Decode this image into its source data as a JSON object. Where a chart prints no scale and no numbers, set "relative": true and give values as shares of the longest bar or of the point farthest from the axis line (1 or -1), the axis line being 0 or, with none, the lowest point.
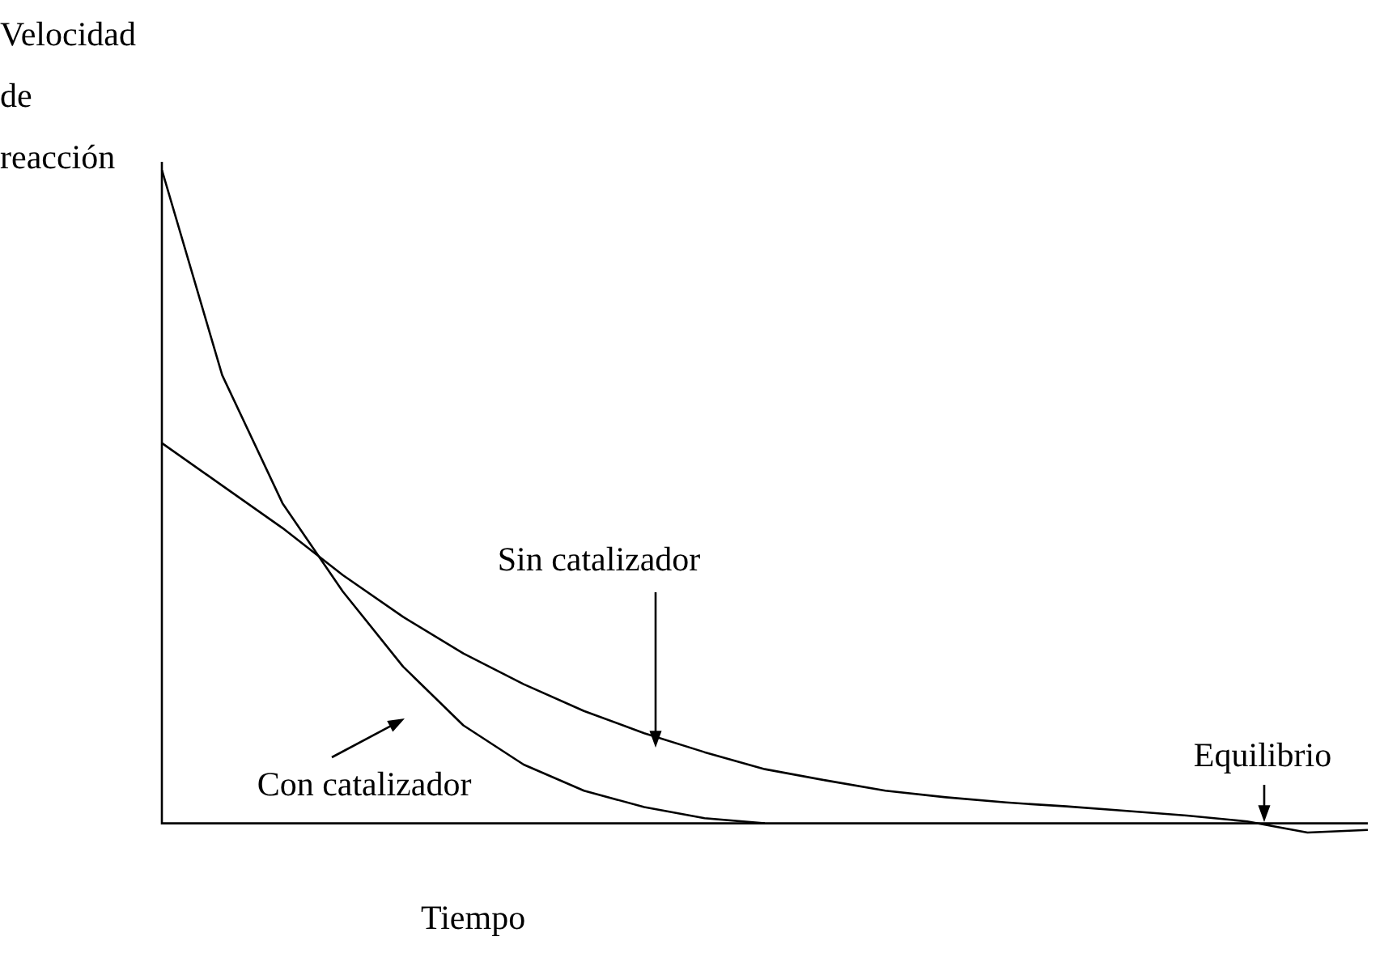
{
  "chart_data": {
    "type": "line",
    "relative": true,
    "xlabel": "Tiempo",
    "ylabel": "Velocidad\nde\nreacción",
    "grid": false,
    "legend": false,
    "marker": "none",
    "line_style": "solid",
    "categories": [
      null,
      null,
      null,
      null,
      null,
      null,
      null,
      null,
      null,
      null,
      null,
      null,
      null,
      null,
      null,
      null,
      null,
      null,
      null,
      null,
      null
    ],
    "series": [
      {
        "values": [
          1,
          0.686,
          0.49,
          0.355,
          0.24,
          0.15,
          0.09,
          0.05,
          0.025,
          0.008,
          0,
          null,
          null,
          null,
          null,
          null,
          null,
          null,
          null,
          null,
          null
        ],
        "color": "#000000"
      },
      {
        "values": [
          0.582,
          0.517,
          0.452,
          0.38,
          0.316,
          0.26,
          0.213,
          0.172,
          0.138,
          0.109,
          0.083,
          0.066,
          0.05,
          0.04,
          0.032,
          0.026,
          0.019,
          0.012,
          0.003,
          -0.014,
          -0.01
        ],
        "color": "#000000"
      }
    ],
    "annotations": [
      "Sin catalizador",
      "Con catalizador",
      "Equilibrio"
    ]
  }
}
